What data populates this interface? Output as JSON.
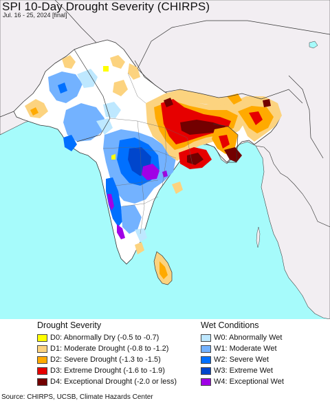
{
  "header": {
    "title": "SPI 10-Day Drought Severity (CHIRPS)",
    "subtitle": "Jul. 16 - 25, 2024 [final]"
  },
  "map": {
    "colors": {
      "ocean": "#a6fbfb",
      "land_outside": "#f2eef2",
      "land_normal": "#ffffff",
      "border": "#333333",
      "d0": "#ffff00",
      "d1": "#fcd37f",
      "d2": "#ffaa00",
      "d3": "#e60000",
      "d4": "#730000",
      "w0": "#bee8ff",
      "w1": "#73b2ff",
      "w2": "#0070ff",
      "w3": "#0046cc",
      "w4": "#a000e6"
    }
  },
  "legend": {
    "drought": {
      "header": "Drought Severity",
      "items": [
        {
          "label": "D0: Abnormally Dry (-0.5 to -0.7)",
          "color": "#ffff00"
        },
        {
          "label": "D1: Moderate Drought (-0.8 to -1.2)",
          "color": "#fcd37f"
        },
        {
          "label": "D2: Severe Drought (-1.3 to -1.5)",
          "color": "#ffaa00"
        },
        {
          "label": "D3: Extreme Drought (-1.6 to -1.9)",
          "color": "#e60000"
        },
        {
          "label": "D4: Exceptional Drought (-2.0 or less)",
          "color": "#730000"
        }
      ]
    },
    "wet": {
      "header": "Wet Conditions",
      "items": [
        {
          "label": "W0: Abnormally Wet",
          "color": "#bee8ff"
        },
        {
          "label": "W1: Moderate Wet",
          "color": "#73b2ff"
        },
        {
          "label": "W2: Severe Wet",
          "color": "#0070ff"
        },
        {
          "label": "W3: Extreme Wet",
          "color": "#0046cc"
        },
        {
          "label": "W4: Exceptional Wet",
          "color": "#a000e6"
        }
      ]
    }
  },
  "footer": {
    "source": "Source: CHIRPS, UCSB, Climate Hazards Center"
  }
}
